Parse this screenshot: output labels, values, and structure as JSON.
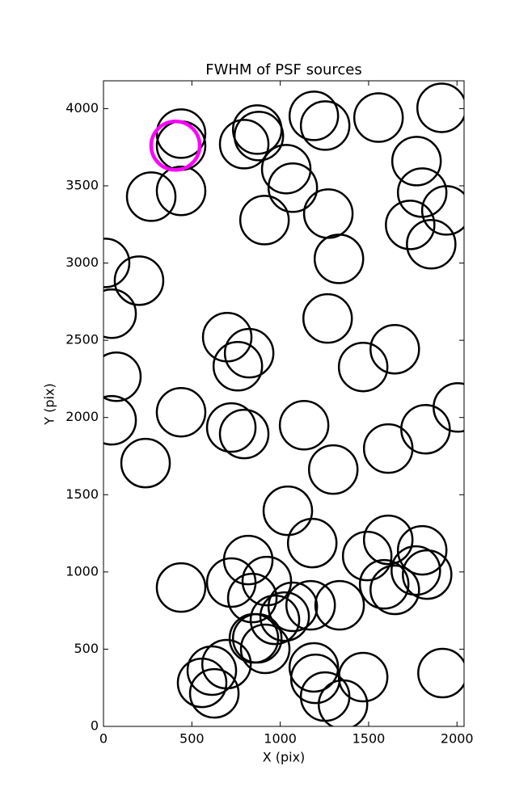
{
  "chart_data": {
    "type": "scatter",
    "title": "FWHM of PSF sources",
    "x_label": "X (pix)",
    "y_label": "Y (pix)",
    "x": [
      439,
      439,
      270,
      439,
      870,
      796,
      879,
      1190,
      1254,
      1556,
      1913,
      1034,
      1071,
      1771,
      1803,
      1940,
      1735,
      1854,
      911,
      1272,
      1332,
      9,
      201,
      46,
      1268,
      700,
      824,
      760,
      1648,
      1469,
      73,
      46,
      439,
      723,
      796,
      1135,
      2005,
      1822,
      1611,
      1300,
      238,
      1043,
      1181,
      1492,
      1611,
      1803,
      1767,
      1831,
      1588,
      1648,
      439,
      819,
      723,
      924,
      842,
      1071,
      1172,
      1336,
      970,
      1025,
      870,
      851,
      915,
      696,
      613,
      558,
      627,
      1190,
      1199,
      1254,
      1355,
      1469,
      1918
    ],
    "y": [
      3838,
      3760,
      3430,
      3467,
      3864,
      3770,
      3822,
      3953,
      3890,
      3942,
      4005,
      3608,
      3488,
      3660,
      3456,
      3341,
      3247,
      3122,
      3278,
      3320,
      3027,
      3001,
      2886,
      2672,
      2641,
      2520,
      2416,
      2332,
      2442,
      2327,
      2264,
      1982,
      2034,
      1935,
      1893,
      1950,
      2065,
      1924,
      1799,
      1663,
      1705,
      1396,
      1187,
      1103,
      1208,
      1140,
      1009,
      983,
      920,
      884,
      899,
      1077,
      931,
      941,
      831,
      774,
      784,
      784,
      690,
      711,
      570,
      570,
      502,
      403,
      361,
      282,
      214,
      382,
      308,
      193,
      141,
      319,
      345
    ],
    "color": "#000000",
    "highlight": {
      "x": 407,
      "y": 3760,
      "color": "#ff00ff"
    },
    "xlim": [
      0,
      2040
    ],
    "ylim": [
      0,
      4180
    ],
    "xticks": [
      0,
      500,
      1000,
      1500,
      2000
    ],
    "yticks": [
      0,
      500,
      1000,
      1500,
      2000,
      2500,
      3000,
      3500,
      4000
    ]
  }
}
